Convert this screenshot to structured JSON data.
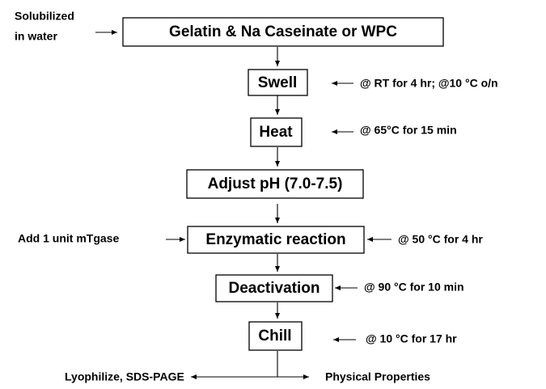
{
  "input_note": [
    "Solubilized",
    "in water"
  ],
  "nodes": [
    {
      "label": "Gelatin & Na Caseinate or WPC"
    },
    {
      "label": "Swell",
      "note": "@ RT for 4 hr; @10 °C o/n"
    },
    {
      "label": "Heat",
      "note": "@ 65°C for 15 min"
    },
    {
      "label": "Adjust pH (7.0-7.5)"
    },
    {
      "label": "Enzymatic reaction",
      "note": "@ 50 °C for 4 hr",
      "input": "Add 1 unit mTgase"
    },
    {
      "label": "Deactivation",
      "note": "@ 90 °C for 10 min"
    },
    {
      "label": "Chill",
      "note": "@ 10 °C for 17 hr"
    }
  ],
  "outputs": [
    "Lyophilize, SDS-PAGE",
    "Physical Properties"
  ]
}
